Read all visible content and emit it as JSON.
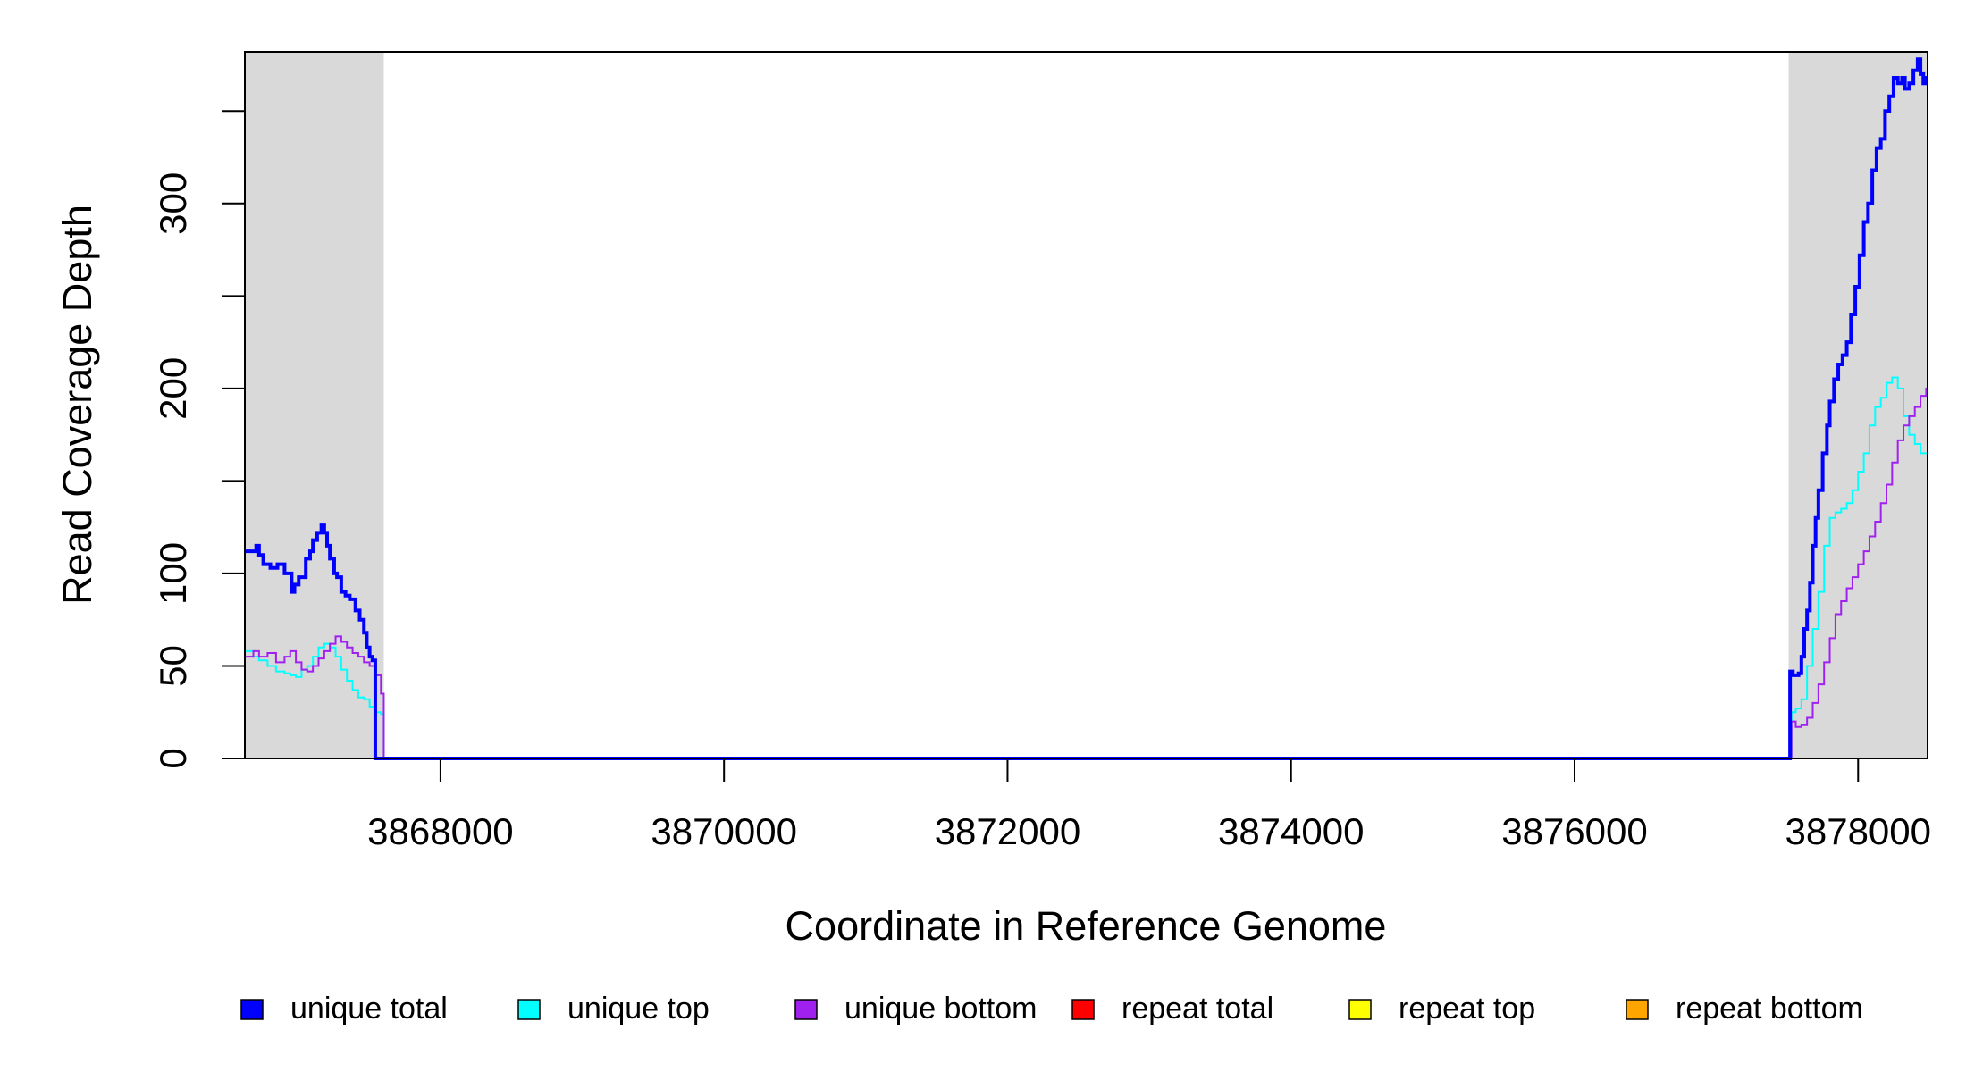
{
  "chart_data": {
    "type": "line",
    "xlabel": "Coordinate in Reference Genome",
    "ylabel": "Read Coverage Depth",
    "xlim": [
      3866620,
      3878490
    ],
    "ylim": [
      0,
      382
    ],
    "x_ticks": [
      3868000,
      3870000,
      3872000,
      3874000,
      3876000,
      3878000
    ],
    "x_tick_labels": [
      "3868000",
      "3870000",
      "3872000",
      "3874000",
      "3876000",
      "3878000"
    ],
    "y_ticks": [
      0,
      50,
      100,
      150,
      200,
      250,
      300,
      350
    ],
    "y_tick_labels": [
      "0",
      "50",
      "100",
      "",
      "200",
      "",
      "300",
      ""
    ],
    "grid": false,
    "legend_position": "bottom",
    "shaded_regions": [
      {
        "x_start": 3866620,
        "x_end": 3867600,
        "color": "#d9d9d9"
      },
      {
        "x_start": 3877510,
        "x_end": 3878490,
        "color": "#d9d9d9"
      }
    ],
    "series": [
      {
        "name": "unique total",
        "color": "#0000ff",
        "step": true,
        "x": [
          3866620,
          3866700,
          3866720,
          3866750,
          3866800,
          3866850,
          3866900,
          3866950,
          3866970,
          3867000,
          3867050,
          3867080,
          3867100,
          3867130,
          3867160,
          3867180,
          3867200,
          3867220,
          3867250,
          3867270,
          3867300,
          3867330,
          3867360,
          3867400,
          3867430,
          3867460,
          3867480,
          3867500,
          3867520,
          3867540,
          3867560,
          3867580,
          3867600,
          3867610,
          3877510,
          3877520,
          3877540,
          3877560,
          3877580,
          3877600,
          3877620,
          3877640,
          3877660,
          3877680,
          3877700,
          3877720,
          3877750,
          3877780,
          3877800,
          3877830,
          3877860,
          3877890,
          3877920,
          3877950,
          3877980,
          3878010,
          3878040,
          3878070,
          3878100,
          3878130,
          3878160,
          3878190,
          3878220,
          3878250,
          3878280,
          3878310,
          3878330,
          3878360,
          3878390,
          3878420,
          3878440,
          3878460,
          3878480
        ],
        "y": [
          112,
          115,
          110,
          105,
          103,
          105,
          100,
          90,
          94,
          98,
          108,
          112,
          118,
          122,
          126,
          122,
          115,
          108,
          100,
          98,
          90,
          88,
          86,
          80,
          75,
          68,
          60,
          55,
          53,
          0,
          0,
          0,
          0,
          0,
          0,
          47,
          45,
          45,
          46,
          55,
          70,
          80,
          95,
          115,
          130,
          145,
          165,
          180,
          193,
          205,
          213,
          218,
          225,
          240,
          255,
          272,
          290,
          300,
          318,
          330,
          335,
          350,
          358,
          368,
          365,
          368,
          362,
          365,
          372,
          378,
          370,
          365,
          368
        ],
        "note": "x is step start coordinate; final values hold to axis end"
      },
      {
        "name": "unique top",
        "color": "#00ffff",
        "step": true,
        "x": [
          3866620,
          3866680,
          3866720,
          3866780,
          3866840,
          3866900,
          3866940,
          3866980,
          3867020,
          3867060,
          3867100,
          3867140,
          3867180,
          3867220,
          3867260,
          3867300,
          3867340,
          3867380,
          3867420,
          3867460,
          3867500,
          3867540,
          3867580,
          3867600,
          3877510,
          3877530,
          3877560,
          3877600,
          3877640,
          3877680,
          3877720,
          3877760,
          3877800,
          3877840,
          3877880,
          3877920,
          3877960,
          3878000,
          3878040,
          3878080,
          3878120,
          3878160,
          3878200,
          3878240,
          3878280,
          3878320,
          3878360,
          3878400,
          3878440,
          3878480
        ],
        "y": [
          58,
          55,
          53,
          50,
          47,
          46,
          45,
          44,
          48,
          50,
          55,
          60,
          62,
          60,
          55,
          48,
          42,
          37,
          33,
          32,
          28,
          25,
          24,
          0,
          0,
          25,
          27,
          32,
          50,
          70,
          90,
          115,
          130,
          133,
          135,
          138,
          145,
          155,
          165,
          180,
          190,
          195,
          203,
          206,
          200,
          185,
          175,
          170,
          165,
          165
        ]
      },
      {
        "name": "unique bottom",
        "color": "#a020f0",
        "step": true,
        "x": [
          3866620,
          3866680,
          3866720,
          3866780,
          3866840,
          3866900,
          3866940,
          3866980,
          3867020,
          3867060,
          3867100,
          3867140,
          3867180,
          3867220,
          3867260,
          3867300,
          3867340,
          3867380,
          3867420,
          3867460,
          3867500,
          3867540,
          3867580,
          3867600,
          3877510,
          3877530,
          3877560,
          3877600,
          3877640,
          3877680,
          3877720,
          3877760,
          3877800,
          3877840,
          3877880,
          3877920,
          3877960,
          3878000,
          3878040,
          3878080,
          3878120,
          3878160,
          3878200,
          3878240,
          3878280,
          3878320,
          3878360,
          3878400,
          3878440,
          3878480
        ],
        "y": [
          55,
          58,
          55,
          57,
          52,
          55,
          58,
          52,
          48,
          47,
          50,
          54,
          58,
          62,
          66,
          63,
          60,
          57,
          55,
          52,
          50,
          45,
          35,
          0,
          0,
          20,
          17,
          18,
          22,
          30,
          40,
          52,
          65,
          78,
          85,
          92,
          98,
          105,
          112,
          120,
          128,
          138,
          148,
          160,
          172,
          180,
          185,
          190,
          196,
          200
        ]
      },
      {
        "name": "repeat total",
        "color": "#ff0000",
        "step": true,
        "x": [
          3866620,
          3878490
        ],
        "y": [
          0,
          0
        ]
      },
      {
        "name": "repeat top",
        "color": "#ffff00",
        "step": true,
        "x": [
          3866620,
          3878490
        ],
        "y": [
          0,
          0
        ]
      },
      {
        "name": "repeat bottom",
        "color": "#ffa500",
        "step": true,
        "x": [
          3866620,
          3878490
        ],
        "y": [
          0,
          0
        ]
      }
    ],
    "legend": [
      {
        "label": "unique total",
        "color": "#0000ff"
      },
      {
        "label": "unique top",
        "color": "#00ffff"
      },
      {
        "label": "unique bottom",
        "color": "#a020f0"
      },
      {
        "label": "repeat total",
        "color": "#ff0000"
      },
      {
        "label": "repeat top",
        "color": "#ffff00"
      },
      {
        "label": "repeat bottom",
        "color": "#ffa500"
      }
    ]
  }
}
